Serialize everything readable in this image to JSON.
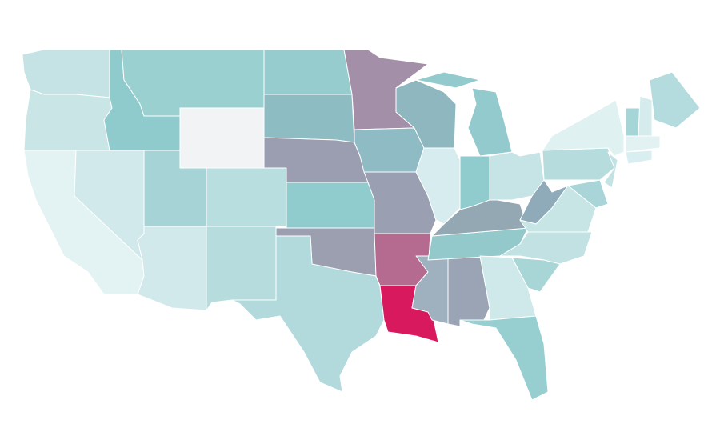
{
  "map": {
    "regions": [
      {
        "color": "#c5e3e5"
      },
      {
        "color": "#c9e5e6"
      },
      {
        "color": "#e3f2f3"
      },
      {
        "color": "#d2e9eb"
      },
      {
        "color": "#8fcbcc"
      },
      {
        "color": "#9bd0d1"
      },
      {
        "color": "#f2f3f5"
      },
      {
        "color": "#a6d4d6"
      },
      {
        "color": "#d2e9eb"
      },
      {
        "color": "#b9dedf"
      },
      {
        "color": "#b7dcdd"
      },
      {
        "color": "#96cccd"
      },
      {
        "color": "#8ebcc3"
      },
      {
        "color": "#9a9eb0"
      },
      {
        "color": "#90cbcd"
      },
      {
        "color": "#9c9fb0"
      },
      {
        "color": "#b2dadd"
      },
      {
        "color": "#a48fa9"
      },
      {
        "color": "#8fbcc4"
      },
      {
        "color": "#9b9fb2"
      },
      {
        "color": "#b56b90"
      },
      {
        "color": "#d9195e"
      },
      {
        "color": "#9fb1bf"
      },
      {
        "color": "#9aa4b4"
      },
      {
        "color": "#94c9cb"
      },
      {
        "color": "#94a8b4"
      },
      {
        "color": "#8fb7c0"
      },
      {
        "color": "#d7ecee"
      },
      {
        "color": "#90ccce"
      },
      {
        "color": "#93cacd"
      },
      {
        "color": "#93cacd"
      },
      {
        "color": "#c6e3e5"
      },
      {
        "color": "#8faab8"
      },
      {
        "color": "#c8e5e6"
      },
      {
        "color": "#c1e1e3"
      },
      {
        "color": "#a8d6d7"
      },
      {
        "color": "#cfe8ea"
      },
      {
        "color": "#97cfd1"
      },
      {
        "color": "#b6dcde"
      },
      {
        "color": "#e0f1f2"
      },
      {
        "color": "#a9d5d8"
      },
      {
        "color": "#c3e2e4"
      },
      {
        "color": "#a5d5d6"
      },
      {
        "color": "#d5ebec"
      },
      {
        "color": "#b4dcde"
      },
      {
        "color": "#e2f2f3"
      },
      {
        "color": "#d8eef0"
      }
    ]
  }
}
